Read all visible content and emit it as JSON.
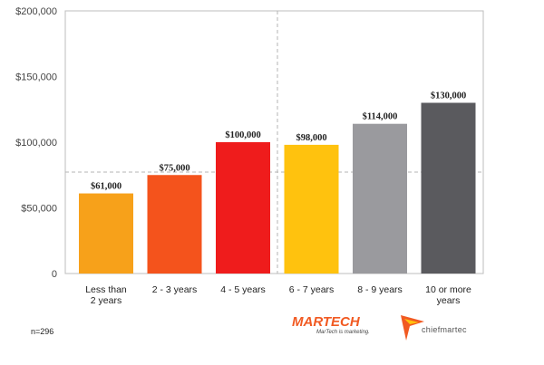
{
  "chart_data": {
    "type": "bar",
    "categories": [
      "Less than\n2 years",
      "2 - 3 years",
      "4 - 5 years",
      "6 - 7 years",
      "8 - 9 years",
      "10 or more\nyears"
    ],
    "values": [
      61000,
      75000,
      100000,
      98000,
      114000,
      130000
    ],
    "data_labels": [
      "$61,000",
      "$75,000",
      "$100,000",
      "$98,000",
      "$114,000",
      "$130,000"
    ],
    "colors": [
      "#f7a11a",
      "#f4531c",
      "#ef1c1c",
      "#ffc20e",
      "#9a9a9e",
      "#5a5a5e"
    ],
    "ylim": [
      0,
      200000
    ],
    "yticks": [
      0,
      50000,
      100000,
      150000,
      200000
    ],
    "ytick_labels": [
      "0",
      "$50,000",
      "$100,000",
      "$150,000",
      "$200,000"
    ],
    "title": "",
    "xlabel": "",
    "ylabel": "",
    "grid": false,
    "legend": "none"
  },
  "footnote": "n=296",
  "logos": {
    "martech": {
      "name": "MARTECH",
      "tagline": "MarTech is marketing."
    },
    "chiefmartec": {
      "name": "chiefmartec"
    }
  }
}
